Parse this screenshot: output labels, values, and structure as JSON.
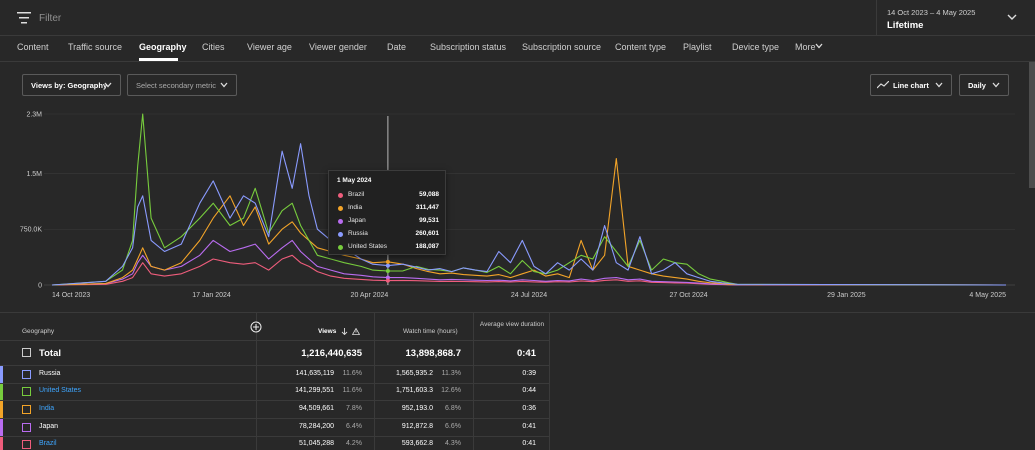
{
  "topbar": {
    "filter_label": "Filter",
    "date_range": "14 Oct 2023 – 4 May 2025",
    "date_mode": "Lifetime"
  },
  "tabs": [
    {
      "label": "Content"
    },
    {
      "label": "Traffic source"
    },
    {
      "label": "Geography"
    },
    {
      "label": "Cities"
    },
    {
      "label": "Viewer age"
    },
    {
      "label": "Viewer gender"
    },
    {
      "label": "Date"
    },
    {
      "label": "Subscription status"
    },
    {
      "label": "Subscription source"
    },
    {
      "label": "Content type"
    },
    {
      "label": "Playlist"
    },
    {
      "label": "Device type"
    },
    {
      "label": "More"
    }
  ],
  "active_tab": "Geography",
  "controls": {
    "primary_metric": "Views by: Geography",
    "secondary_metric": "Select secondary metric",
    "chart_type": "Line chart",
    "interval": "Daily"
  },
  "colors": {
    "Russia": "#8a9bff",
    "United States": "#77cc3d",
    "India": "#f3a428",
    "Japan": "#b96cf0",
    "Brazil": "#ef5d7c",
    "link": "#3ea6ff",
    "background": "#282828"
  },
  "chart_data": {
    "type": "line",
    "y_ticks": [
      "2.3M",
      "1.5M",
      "750.0K",
      "0"
    ],
    "ylim": [
      0,
      2300000
    ],
    "x_ticks": [
      "14 Oct 2023",
      "17 Jan 2024",
      "20 Apr 2024",
      "24 Jul 2024",
      "27 Oct 2024",
      "29 Jan 2025",
      "4 May 2025"
    ],
    "x": [
      "2023-10-14",
      "2023-11-15",
      "2023-11-25",
      "2023-12-01",
      "2023-12-04",
      "2023-12-07",
      "2023-12-12",
      "2023-12-20",
      "2023-12-30",
      "2024-01-10",
      "2024-01-18",
      "2024-01-28",
      "2024-02-05",
      "2024-02-12",
      "2024-02-20",
      "2024-02-28",
      "2024-03-05",
      "2024-03-10",
      "2024-03-15",
      "2024-03-20",
      "2024-03-28",
      "2024-04-05",
      "2024-04-15",
      "2024-04-22",
      "2024-05-01",
      "2024-05-10",
      "2024-05-18",
      "2024-05-25",
      "2024-06-01",
      "2024-06-08",
      "2024-06-15",
      "2024-06-22",
      "2024-06-29",
      "2024-07-06",
      "2024-07-13",
      "2024-07-20",
      "2024-07-27",
      "2024-08-03",
      "2024-08-10",
      "2024-08-17",
      "2024-08-24",
      "2024-08-31",
      "2024-09-07",
      "2024-09-14",
      "2024-09-21",
      "2024-09-28",
      "2024-10-05",
      "2024-10-12",
      "2024-10-19",
      "2024-10-26",
      "2024-11-02",
      "2024-11-09",
      "2024-11-16",
      "2024-11-20",
      "2024-11-25",
      "2025-05-04"
    ],
    "series": [
      {
        "name": "Russia",
        "values": [
          0,
          50000,
          250000,
          500000,
          1050000,
          1200000,
          600000,
          450000,
          550000,
          1100000,
          1400000,
          900000,
          1200000,
          1100000,
          650000,
          1800000,
          1300000,
          1900000,
          1200000,
          750000,
          600000,
          500000,
          350000,
          280000,
          260601,
          280000,
          240000,
          200000,
          220000,
          180000,
          230000,
          200000,
          180000,
          450000,
          300000,
          600000,
          250000,
          150000,
          300000,
          200000,
          350000,
          200000,
          800000,
          300000,
          200000,
          650000,
          150000,
          200000,
          300000,
          150000,
          100000,
          50000,
          30000,
          20000,
          10000,
          0
        ]
      },
      {
        "name": "United States",
        "values": [
          0,
          50000,
          200000,
          600000,
          1600000,
          2300000,
          900000,
          500000,
          650000,
          900000,
          1100000,
          800000,
          900000,
          1300000,
          700000,
          1000000,
          1100000,
          800000,
          600000,
          400000,
          350000,
          300000,
          250000,
          200000,
          188087,
          190000,
          250000,
          210000,
          200000,
          180000,
          230000,
          200000,
          170000,
          250000,
          150000,
          330000,
          180000,
          150000,
          200000,
          300000,
          400000,
          350000,
          650000,
          450000,
          250000,
          600000,
          200000,
          350000,
          300000,
          280000,
          150000,
          80000,
          50000,
          30000,
          10000,
          0
        ]
      },
      {
        "name": "India",
        "values": [
          0,
          20000,
          100000,
          200000,
          350000,
          500000,
          250000,
          200000,
          300000,
          600000,
          900000,
          1200000,
          800000,
          1050000,
          550000,
          750000,
          850000,
          700000,
          600000,
          500000,
          450000,
          400000,
          350000,
          300000,
          311447,
          280000,
          220000,
          180000,
          150000,
          160000,
          140000,
          130000,
          120000,
          140000,
          100000,
          150000,
          200000,
          120000,
          150000,
          100000,
          600000,
          200000,
          400000,
          1700000,
          250000,
          200000,
          150000,
          120000,
          100000,
          80000,
          50000,
          30000,
          20000,
          10000,
          5000,
          0
        ]
      },
      {
        "name": "Japan",
        "values": [
          0,
          20000,
          80000,
          150000,
          300000,
          400000,
          250000,
          200000,
          250000,
          400000,
          600000,
          450000,
          500000,
          550000,
          350000,
          500000,
          600000,
          450000,
          350000,
          250000,
          200000,
          150000,
          130000,
          110000,
          99531,
          100000,
          90000,
          80000,
          70000,
          75000,
          70000,
          65000,
          60000,
          65000,
          55000,
          70000,
          60000,
          50000,
          60000,
          55000,
          80000,
          60000,
          90000,
          100000,
          70000,
          80000,
          50000,
          45000,
          40000,
          35000,
          25000,
          15000,
          10000,
          5000,
          2000,
          0
        ]
      },
      {
        "name": "Brazil",
        "values": [
          0,
          10000,
          50000,
          100000,
          200000,
          300000,
          150000,
          120000,
          150000,
          250000,
          350000,
          300000,
          280000,
          300000,
          200000,
          350000,
          400000,
          300000,
          250000,
          180000,
          120000,
          90000,
          75000,
          65000,
          59088,
          62000,
          58000,
          52000,
          48000,
          50000,
          47000,
          45000,
          42000,
          46000,
          40000,
          48000,
          42000,
          38000,
          44000,
          40000,
          55000,
          44000,
          62000,
          70000,
          50000,
          56000,
          36000,
          32000,
          28000,
          25000,
          18000,
          10000,
          6000,
          3000,
          1000,
          0
        ]
      }
    ],
    "hover_marker": "2024-05-01",
    "grid": true,
    "legend": "none"
  },
  "tooltip": {
    "title": "1 May 2024",
    "rows": [
      {
        "name": "Brazil",
        "value": "59,088"
      },
      {
        "name": "India",
        "value": "311,447"
      },
      {
        "name": "Japan",
        "value": "99,531"
      },
      {
        "name": "Russia",
        "value": "260,601"
      },
      {
        "name": "United States",
        "value": "188,087"
      }
    ]
  },
  "table": {
    "headers": {
      "geography": "Geography",
      "views": "Views",
      "watch_time": "Watch time (hours)",
      "avd": "Average view duration"
    },
    "total": {
      "label": "Total",
      "views": "1,216,440,635",
      "watch": "13,898,868.7",
      "avd": "0:41"
    },
    "rows": [
      {
        "name": "Russia",
        "views": "141,635,119",
        "views_pct": "11.6%",
        "watch": "1,565,935.2",
        "watch_pct": "11.3%",
        "avd": "0:39"
      },
      {
        "name": "United States",
        "views": "141,299,551",
        "views_pct": "11.6%",
        "watch": "1,751,603.3",
        "watch_pct": "12.6%",
        "avd": "0:44"
      },
      {
        "name": "India",
        "views": "94,509,661",
        "views_pct": "7.8%",
        "watch": "952,193.0",
        "watch_pct": "6.8%",
        "avd": "0:36"
      },
      {
        "name": "Japan",
        "views": "78,284,200",
        "views_pct": "6.4%",
        "watch": "912,872.8",
        "watch_pct": "6.6%",
        "avd": "0:41"
      },
      {
        "name": "Brazil",
        "views": "51,045,288",
        "views_pct": "4.2%",
        "watch": "593,662.8",
        "watch_pct": "4.3%",
        "avd": "0:41"
      }
    ]
  }
}
